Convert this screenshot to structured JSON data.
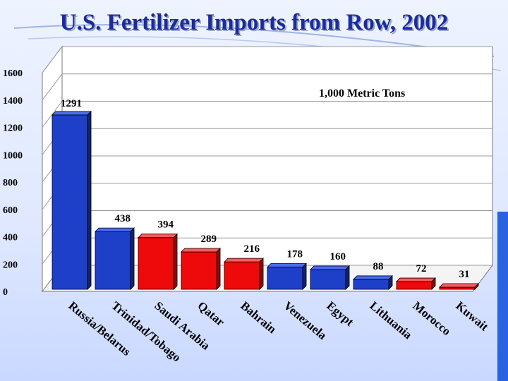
{
  "title": "U.S. Fertilizer Imports from Row, 2002",
  "colors": {
    "title": "#1b2a9c",
    "blue_bar": "#1e3fc8",
    "red_bar": "#ee0a0a",
    "accent": "#2a63e0"
  },
  "chart_data": {
    "type": "bar",
    "title": "U.S. Fertilizer Imports from Row, 2002",
    "unit_label": "1,000 Metric Tons",
    "xlabel": "",
    "ylabel": "",
    "ylim": [
      0,
      1600
    ],
    "yticks": [
      0,
      200,
      400,
      600,
      800,
      1000,
      1200,
      1400,
      1600
    ],
    "grid": true,
    "categories": [
      "Russia/Belarus",
      "Trinidad/Tobago",
      "Saudi Arabia",
      "Qatar",
      "Bahrain",
      "Venezuela",
      "Egypt",
      "Lithuania",
      "Morocco",
      "Kuwait"
    ],
    "values": [
      1291,
      438,
      394,
      289,
      216,
      178,
      160,
      88,
      72,
      31
    ],
    "bar_colors": [
      "blue",
      "blue",
      "red",
      "red",
      "red",
      "blue",
      "blue",
      "blue",
      "red",
      "red"
    ]
  }
}
